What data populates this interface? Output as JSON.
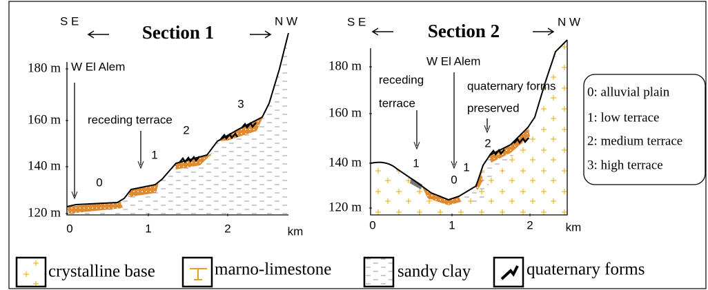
{
  "section1": {
    "left_dir": "S E",
    "title": "Section 1",
    "right_dir": "N W",
    "y_labels": [
      "180 m",
      "160 m",
      "140 m",
      "120 m"
    ],
    "x_labels": [
      "0",
      "1",
      "2",
      "km"
    ],
    "site": "W El Alem",
    "annotation": "receding terrace",
    "terrace_numbers": [
      "0",
      "1",
      "2",
      "3"
    ]
  },
  "section2": {
    "left_dir": "S E",
    "title": "Section 2",
    "right_dir": "N W",
    "y_labels": [
      "180 m",
      "160 m",
      "140 m",
      "120 m"
    ],
    "x_labels": [
      "0",
      "1",
      "2",
      "km"
    ],
    "site": "W El Alem",
    "annotation_lines": [
      "receding",
      "terrace"
    ],
    "preserved_lines": [
      "quaternary forms",
      "preserved"
    ],
    "terrace_numbers": [
      "1",
      "0",
      "1",
      "2"
    ]
  },
  "terrace_legend": [
    "0: alluvial plain",
    "1: low terrace",
    "2: medium terrace",
    "3: high terrace"
  ],
  "legend": [
    "crystalline base",
    "marno-limestone",
    "sandy clay",
    "quaternary forms"
  ]
}
